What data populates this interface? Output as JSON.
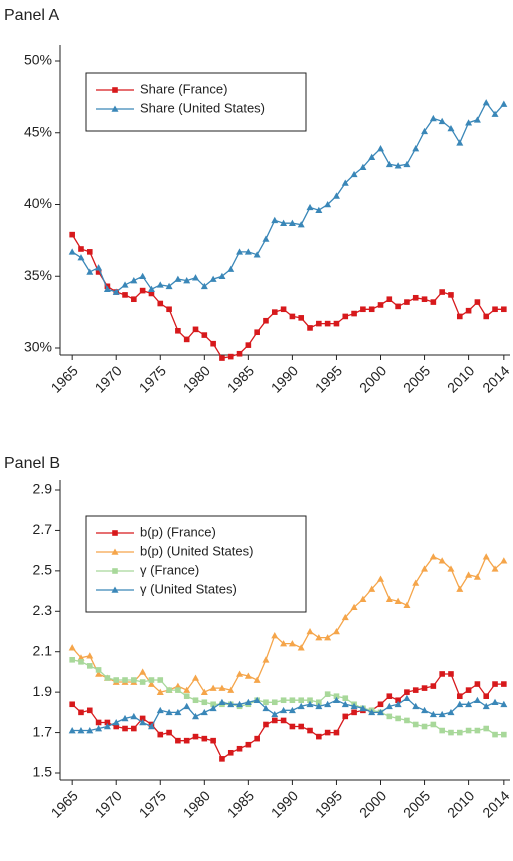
{
  "chart_data": [
    {
      "type": "line",
      "title": "Panel A",
      "x": [
        1965,
        1966,
        1967,
        1968,
        1969,
        1970,
        1971,
        1972,
        1973,
        1974,
        1975,
        1976,
        1977,
        1978,
        1979,
        1980,
        1981,
        1982,
        1983,
        1984,
        1985,
        1986,
        1987,
        1988,
        1989,
        1990,
        1991,
        1992,
        1993,
        1994,
        1995,
        1996,
        1997,
        1998,
        1999,
        2000,
        2001,
        2002,
        2003,
        2004,
        2005,
        2006,
        2007,
        2008,
        2009,
        2010,
        2011,
        2012,
        2013,
        2014
      ],
      "xlim": [
        1964.3,
        2014.7
      ],
      "xticks": [
        1965,
        1970,
        1975,
        1980,
        1985,
        1990,
        1995,
        2000,
        2005,
        2010,
        2014
      ],
      "ylim": [
        30,
        50
      ],
      "yticks": [
        {
          "value": 30,
          "label": "30%"
        },
        {
          "value": 35,
          "label": "35%"
        },
        {
          "value": 40,
          "label": "40%"
        },
        {
          "value": 45,
          "label": "45%"
        },
        {
          "value": 50,
          "label": "50%"
        }
      ],
      "legend": "upper left",
      "series": [
        {
          "name": "Share (France)",
          "color": "#d7191c",
          "marker": "square",
          "values": [
            37.9,
            36.9,
            36.7,
            35.3,
            34.3,
            33.9,
            33.7,
            33.4,
            34.0,
            33.8,
            33.1,
            32.7,
            31.2,
            30.6,
            31.3,
            30.9,
            30.3,
            29.3,
            29.4,
            29.6,
            30.2,
            31.1,
            31.9,
            32.5,
            32.7,
            32.2,
            32.1,
            31.4,
            31.7,
            31.7,
            31.7,
            32.2,
            32.4,
            32.7,
            32.7,
            33.0,
            33.4,
            32.9,
            33.2,
            33.5,
            33.4,
            33.2,
            33.9,
            33.7,
            32.2,
            32.6,
            33.2,
            32.2,
            32.7,
            32.7
          ]
        },
        {
          "name": "Share (United States)",
          "color": "#3a87b8",
          "marker": "triangle",
          "values": [
            36.7,
            36.3,
            35.3,
            35.6,
            34.1,
            33.9,
            34.4,
            34.7,
            35.0,
            34.1,
            34.4,
            34.3,
            34.8,
            34.7,
            34.9,
            34.3,
            34.8,
            35.0,
            35.5,
            36.7,
            36.7,
            36.5,
            37.6,
            38.9,
            38.7,
            38.7,
            38.6,
            39.8,
            39.6,
            40.0,
            40.6,
            41.5,
            42.1,
            42.6,
            43.3,
            43.9,
            42.8,
            42.7,
            42.8,
            43.9,
            45.1,
            46.0,
            45.8,
            45.3,
            44.3,
            45.7,
            45.9,
            47.1,
            46.3,
            47.0
          ]
        }
      ]
    },
    {
      "type": "line",
      "title": "Panel B",
      "x": [
        1965,
        1966,
        1967,
        1968,
        1969,
        1970,
        1971,
        1972,
        1973,
        1974,
        1975,
        1976,
        1977,
        1978,
        1979,
        1980,
        1981,
        1982,
        1983,
        1984,
        1985,
        1986,
        1987,
        1988,
        1989,
        1990,
        1991,
        1992,
        1993,
        1994,
        1995,
        1996,
        1997,
        1998,
        1999,
        2000,
        2001,
        2002,
        2003,
        2004,
        2005,
        2006,
        2007,
        2008,
        2009,
        2010,
        2011,
        2012,
        2013,
        2014
      ],
      "xlim": [
        1964.3,
        2014.7
      ],
      "xticks": [
        1965,
        1970,
        1975,
        1980,
        1985,
        1990,
        1995,
        2000,
        2005,
        2010,
        2014
      ],
      "ylim": [
        1.5,
        2.9
      ],
      "yticks": [
        1.5,
        1.7,
        1.9,
        2.1,
        2.3,
        2.5,
        2.7,
        2.9
      ],
      "legend": "upper left",
      "series": [
        {
          "name": "b(p) (France)",
          "color": "#d7191c",
          "marker": "square",
          "values": [
            1.84,
            1.8,
            1.81,
            1.75,
            1.75,
            1.73,
            1.72,
            1.72,
            1.77,
            1.74,
            1.69,
            1.7,
            1.66,
            1.66,
            1.68,
            1.67,
            1.66,
            1.57,
            1.6,
            1.62,
            1.64,
            1.67,
            1.74,
            1.76,
            1.76,
            1.73,
            1.73,
            1.71,
            1.68,
            1.7,
            1.7,
            1.78,
            1.8,
            1.81,
            1.81,
            1.84,
            1.88,
            1.86,
            1.9,
            1.91,
            1.92,
            1.93,
            1.99,
            1.99,
            1.88,
            1.91,
            1.94,
            1.88,
            1.94,
            1.94
          ]
        },
        {
          "name": "b(p) (United States)",
          "color": "#f5a54a",
          "marker": "triangle",
          "values": [
            2.12,
            2.07,
            2.08,
            1.99,
            1.97,
            1.95,
            1.95,
            1.95,
            2.0,
            1.94,
            1.9,
            1.91,
            1.93,
            1.91,
            1.97,
            1.9,
            1.92,
            1.92,
            1.91,
            1.99,
            1.98,
            1.96,
            2.06,
            2.18,
            2.14,
            2.14,
            2.12,
            2.2,
            2.17,
            2.17,
            2.2,
            2.27,
            2.32,
            2.36,
            2.41,
            2.46,
            2.36,
            2.35,
            2.33,
            2.44,
            2.51,
            2.57,
            2.55,
            2.51,
            2.41,
            2.48,
            2.47,
            2.57,
            2.51,
            2.55
          ]
        },
        {
          "name": "γ (France)",
          "color": "#a8d89a",
          "marker": "square",
          "values": [
            2.06,
            2.05,
            2.03,
            2.01,
            1.97,
            1.96,
            1.96,
            1.96,
            1.95,
            1.96,
            1.96,
            1.91,
            1.91,
            1.88,
            1.86,
            1.85,
            1.84,
            1.84,
            1.84,
            1.83,
            1.84,
            1.86,
            1.85,
            1.85,
            1.86,
            1.86,
            1.86,
            1.86,
            1.85,
            1.89,
            1.88,
            1.87,
            1.84,
            1.82,
            1.81,
            1.8,
            1.78,
            1.77,
            1.76,
            1.74,
            1.73,
            1.74,
            1.71,
            1.7,
            1.7,
            1.71,
            1.71,
            1.72,
            1.69,
            1.69
          ]
        },
        {
          "name": "γ (United States)",
          "color": "#3a87b8",
          "marker": "triangle",
          "values": [
            1.71,
            1.71,
            1.71,
            1.72,
            1.73,
            1.75,
            1.77,
            1.78,
            1.75,
            1.73,
            1.81,
            1.8,
            1.8,
            1.83,
            1.78,
            1.8,
            1.82,
            1.85,
            1.84,
            1.84,
            1.85,
            1.86,
            1.82,
            1.79,
            1.81,
            1.81,
            1.83,
            1.84,
            1.83,
            1.84,
            1.86,
            1.84,
            1.83,
            1.82,
            1.8,
            1.8,
            1.83,
            1.84,
            1.87,
            1.83,
            1.81,
            1.79,
            1.79,
            1.8,
            1.84,
            1.84,
            1.86,
            1.83,
            1.85,
            1.84
          ]
        }
      ]
    }
  ]
}
